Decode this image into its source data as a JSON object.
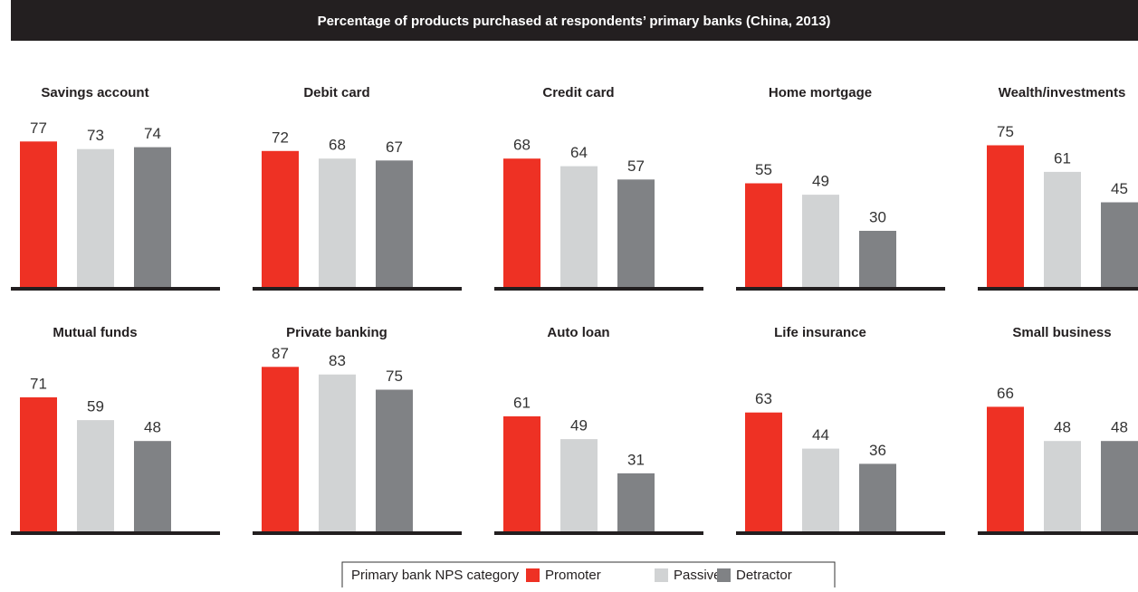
{
  "chart_data": {
    "type": "bar",
    "title": "Percentage of products purchased at respondents’ primary banks (China, 2013)",
    "legend_title": "Primary bank NPS category",
    "series": [
      {
        "name": "Promoter",
        "color": "#ee3124"
      },
      {
        "name": "Passive",
        "color": "#d1d3d4"
      },
      {
        "name": "Detractor",
        "color": "#808285"
      }
    ],
    "panels": [
      {
        "title": "Savings account",
        "values": [
          77,
          73,
          74
        ]
      },
      {
        "title": "Debit card",
        "values": [
          72,
          68,
          67
        ]
      },
      {
        "title": "Credit card",
        "values": [
          68,
          64,
          57
        ]
      },
      {
        "title": "Home mortgage",
        "values": [
          55,
          49,
          30
        ]
      },
      {
        "title": "Wealth/investments",
        "values": [
          75,
          61,
          45
        ]
      },
      {
        "title": "Mutual funds",
        "values": [
          71,
          59,
          48
        ]
      },
      {
        "title": "Private banking",
        "values": [
          87,
          83,
          75
        ]
      },
      {
        "title": "Auto loan",
        "values": [
          61,
          49,
          31
        ]
      },
      {
        "title": "Life insurance",
        "values": [
          63,
          44,
          36
        ]
      },
      {
        "title": "Small business",
        "values": [
          66,
          48,
          48
        ]
      }
    ],
    "ylim": [
      0,
      100
    ]
  }
}
